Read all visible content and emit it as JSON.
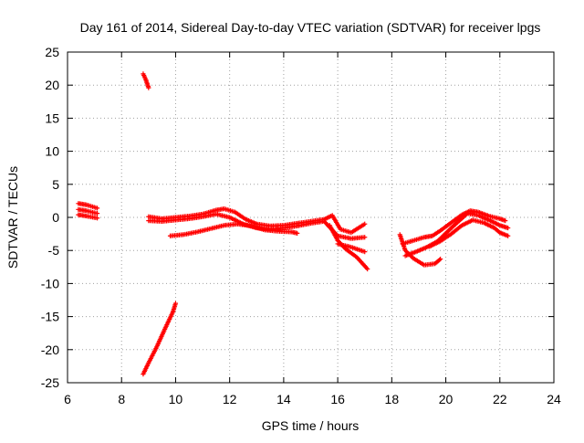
{
  "chart_data": {
    "type": "scatter",
    "title": "Day 161 of 2014, Sidereal Day-to-day VTEC variation (SDTVAR) for receiver lpgs",
    "xlabel": "GPS time / hours",
    "ylabel": "SDTVAR / TECUs",
    "xlim": [
      6,
      24
    ],
    "ylim": [
      -25,
      25
    ],
    "grid": true,
    "legend": "none",
    "marker": "+",
    "xticks": [
      "6",
      "8",
      "10",
      "12",
      "14",
      "16",
      "18",
      "20",
      "22",
      "24"
    ],
    "yticks": [
      "-25",
      "-20",
      "-15",
      "-10",
      "-5",
      "0",
      "5",
      "10",
      "15",
      "20",
      "25"
    ],
    "series": [
      {
        "name": "SDTVAR",
        "color": "#ff0000",
        "tracks": [
          [
            [
              6.4,
              2.1
            ],
            [
              6.7,
              1.9
            ],
            [
              7.1,
              1.4
            ]
          ],
          [
            [
              6.4,
              1.2
            ],
            [
              6.7,
              1.0
            ],
            [
              7.1,
              0.6
            ]
          ],
          [
            [
              6.4,
              0.4
            ],
            [
              6.7,
              0.2
            ],
            [
              7.1,
              -0.1
            ]
          ],
          [
            [
              8.8,
              21.7
            ],
            [
              8.9,
              20.8
            ],
            [
              9.0,
              19.6
            ]
          ],
          [
            [
              8.8,
              -23.7
            ],
            [
              9.0,
              -22.0
            ],
            [
              9.3,
              -19.6
            ],
            [
              9.6,
              -16.9
            ],
            [
              9.9,
              -14.3
            ],
            [
              10.0,
              -13.0
            ]
          ],
          [
            [
              9.0,
              0.1
            ],
            [
              9.5,
              -0.2
            ],
            [
              10.0,
              0.0
            ],
            [
              10.5,
              0.2
            ],
            [
              11.0,
              0.5
            ],
            [
              11.5,
              1.1
            ],
            [
              11.8,
              1.3
            ],
            [
              12.2,
              0.8
            ],
            [
              12.6,
              -0.3
            ],
            [
              13.0,
              -1.0
            ],
            [
              13.5,
              -1.3
            ],
            [
              14.0,
              -1.2
            ],
            [
              14.5,
              -0.9
            ],
            [
              15.0,
              -0.6
            ],
            [
              15.5,
              -0.3
            ],
            [
              15.8,
              0.3
            ],
            [
              16.1,
              -1.8
            ],
            [
              16.5,
              -2.3
            ],
            [
              17.0,
              -1.0
            ]
          ],
          [
            [
              9.0,
              -0.5
            ],
            [
              9.5,
              -0.6
            ],
            [
              10.0,
              -0.4
            ],
            [
              10.5,
              -0.2
            ],
            [
              11.0,
              0.1
            ],
            [
              11.5,
              0.5
            ],
            [
              12.0,
              0.0
            ],
            [
              12.5,
              -1.0
            ],
            [
              13.0,
              -1.6
            ],
            [
              13.5,
              -1.8
            ],
            [
              14.0,
              -1.6
            ],
            [
              14.5,
              -1.3
            ],
            [
              15.0,
              -0.9
            ],
            [
              15.5,
              -0.6
            ],
            [
              16.0,
              -2.8
            ],
            [
              16.5,
              -3.2
            ],
            [
              17.0,
              -3.0
            ]
          ],
          [
            [
              9.8,
              -2.8
            ],
            [
              10.3,
              -2.6
            ],
            [
              10.8,
              -2.2
            ],
            [
              11.3,
              -1.7
            ],
            [
              11.8,
              -1.2
            ],
            [
              12.3,
              -1.0
            ],
            [
              12.8,
              -1.3
            ],
            [
              13.3,
              -1.9
            ],
            [
              13.8,
              -2.1
            ],
            [
              14.3,
              -2.2
            ],
            [
              14.5,
              -2.4
            ]
          ],
          [
            [
              15.7,
              -1.2
            ],
            [
              16.0,
              -3.5
            ],
            [
              16.3,
              -4.8
            ],
            [
              16.7,
              -6.0
            ],
            [
              17.1,
              -7.8
            ]
          ],
          [
            [
              16.0,
              -4.0
            ],
            [
              16.5,
              -4.5
            ],
            [
              17.0,
              -5.2
            ]
          ],
          [
            [
              18.3,
              -2.6
            ],
            [
              18.5,
              -5.0
            ],
            [
              18.8,
              -6.2
            ],
            [
              19.2,
              -7.2
            ],
            [
              19.6,
              -7.0
            ],
            [
              19.8,
              -6.3
            ]
          ],
          [
            [
              18.4,
              -4.0
            ],
            [
              18.8,
              -3.5
            ],
            [
              19.2,
              -3.0
            ],
            [
              19.5,
              -2.8
            ],
            [
              19.8,
              -2.0
            ],
            [
              20.2,
              -0.8
            ],
            [
              20.6,
              0.4
            ],
            [
              20.9,
              1.0
            ],
            [
              21.2,
              0.8
            ],
            [
              21.6,
              0.2
            ],
            [
              22.0,
              -0.2
            ],
            [
              22.2,
              -0.5
            ]
          ],
          [
            [
              18.5,
              -5.8
            ],
            [
              18.9,
              -5.2
            ],
            [
              19.3,
              -4.5
            ],
            [
              19.7,
              -3.6
            ],
            [
              20.1,
              -2.0
            ],
            [
              20.5,
              -0.5
            ],
            [
              20.8,
              0.6
            ],
            [
              21.2,
              0.3
            ],
            [
              21.6,
              -0.4
            ],
            [
              22.0,
              -1.2
            ],
            [
              22.3,
              -1.6
            ]
          ],
          [
            [
              19.4,
              -4.4
            ],
            [
              19.8,
              -3.6
            ],
            [
              20.2,
              -2.5
            ],
            [
              20.6,
              -1.2
            ],
            [
              21.0,
              -0.4
            ],
            [
              21.4,
              -0.8
            ],
            [
              21.8,
              -1.6
            ],
            [
              22.0,
              -2.3
            ],
            [
              22.3,
              -2.8
            ]
          ]
        ]
      }
    ]
  }
}
